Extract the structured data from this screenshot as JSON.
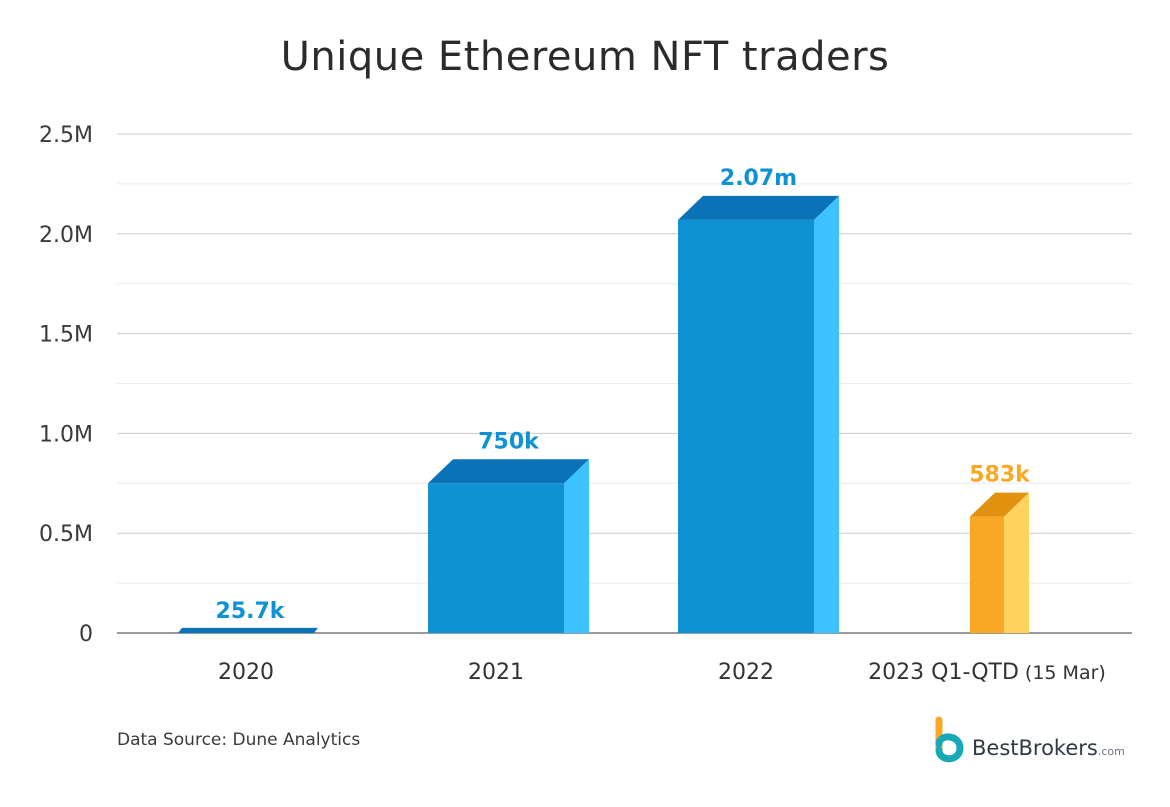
{
  "chart_data": {
    "type": "bar",
    "title": "Unique Ethereum NFT traders",
    "categories": [
      "2020",
      "2021",
      "2022",
      "2023 Q1-QTD"
    ],
    "category_notes": [
      "",
      "",
      "",
      "(15 Mar)"
    ],
    "values": [
      25700,
      750000,
      2070000,
      583000
    ],
    "value_labels": [
      "25.7k",
      "750k",
      "2.07m",
      "583k"
    ],
    "y_ticks": [
      0,
      500000,
      1000000,
      1500000,
      2000000,
      2500000
    ],
    "y_tick_labels": [
      "0",
      "0.5M",
      "1.0M",
      "1.5M",
      "2.0M",
      "2.5M"
    ],
    "ylim": [
      0,
      2500000
    ],
    "xlabel": "",
    "ylabel": "",
    "grid": true,
    "bar_colors": [
      "#0f92d4",
      "#0f92d4",
      "#0f92d4",
      "#f9a825"
    ],
    "label_colors": [
      "#0f92d4",
      "#0f92d4",
      "#0f92d4",
      "#f9a825"
    ]
  },
  "footer": {
    "source": "Data Source: Dune Analytics"
  },
  "brand": {
    "name": "BestBrokers",
    "domain": ".com"
  }
}
